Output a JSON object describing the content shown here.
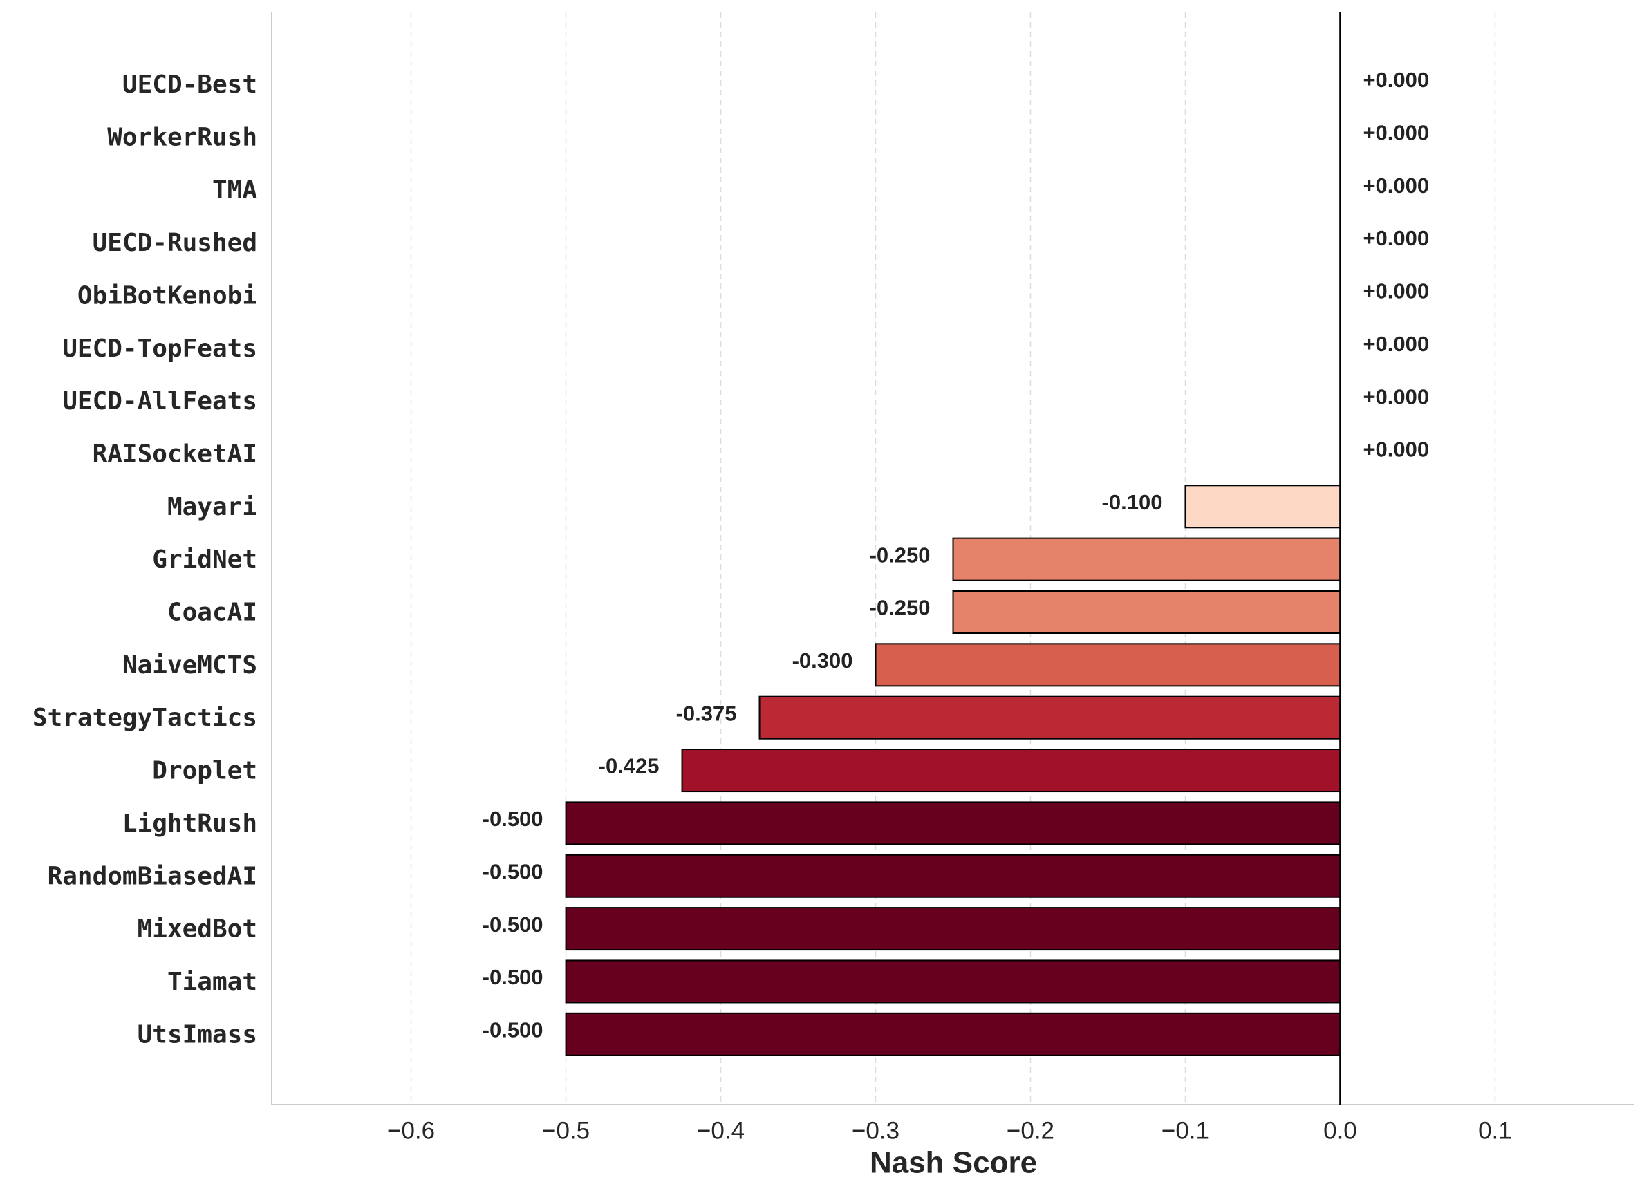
{
  "chart_data": {
    "type": "barh",
    "xlabel": "Nash Score",
    "categories": [
      "UECD-Best",
      "WorkerRush",
      "TMA",
      "UECD-Rushed",
      "ObiBotKenobi",
      "UECD-TopFeats",
      "UECD-AllFeats",
      "RAISocketAI",
      "Mayari",
      "GridNet",
      "CoacAI",
      "NaiveMCTS",
      "StrategyTactics",
      "Droplet",
      "LightRush",
      "RandomBiasedAI",
      "MixedBot",
      "Tiamat",
      "UtsImass"
    ],
    "values": [
      0,
      0,
      0,
      0,
      0,
      0,
      0,
      0,
      -0.1,
      -0.25,
      -0.25,
      -0.3,
      -0.375,
      -0.425,
      -0.5,
      -0.5,
      -0.5,
      -0.5,
      -0.5
    ],
    "value_labels": [
      "+0.000",
      "+0.000",
      "+0.000",
      "+0.000",
      "+0.000",
      "+0.000",
      "+0.000",
      "+0.000",
      "-0.100",
      "-0.250",
      "-0.250",
      "-0.300",
      "-0.375",
      "-0.425",
      "-0.500",
      "-0.500",
      "-0.500",
      "-0.500",
      "-0.500"
    ],
    "colors": [
      "#f1c40f",
      "#fff5f0",
      "#fff5f0",
      "#fff5f0",
      "#fff5f0",
      "#fff5f0",
      "#fff5f0",
      "#fff5f0",
      "#fdd9c5",
      "#e5826a",
      "#e5826a",
      "#d6604d",
      "#bb2935",
      "#a11228",
      "#67001f",
      "#67001f",
      "#67001f",
      "#67001f",
      "#67001f"
    ],
    "edge_colors": [
      "#f1c40f",
      "#000000",
      "#000000",
      "#000000",
      "#000000",
      "#000000",
      "#000000",
      "#000000",
      "#000000",
      "#000000",
      "#000000",
      "#000000",
      "#000000",
      "#000000",
      "#000000",
      "#000000",
      "#000000",
      "#000000",
      "#000000"
    ],
    "xlim": [
      -0.69,
      0.19
    ],
    "xticks": [
      {
        "value": -0.6,
        "label": "−0.6"
      },
      {
        "value": -0.5,
        "label": "−0.5"
      },
      {
        "value": -0.4,
        "label": "−0.4"
      },
      {
        "value": -0.3,
        "label": "−0.3"
      },
      {
        "value": -0.2,
        "label": "−0.2"
      },
      {
        "value": -0.1,
        "label": "−0.1"
      },
      {
        "value": 0,
        "label": "0.0"
      },
      0.1
    ],
    "grid": true
  }
}
